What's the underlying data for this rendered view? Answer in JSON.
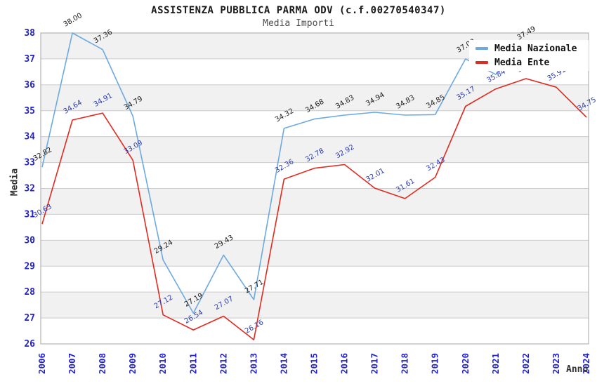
{
  "title": "ASSISTENZA PUBBLICA PARMA ODV (c.f.00270540347)",
  "subtitle": "Media Importi",
  "axes": {
    "y_label": "Media",
    "x_label": "Anno",
    "y_ticks": [
      "38",
      "37",
      "36",
      "35",
      "34",
      "33",
      "32",
      "31",
      "30",
      "29",
      "28",
      "27",
      "26"
    ],
    "x_ticks": [
      "2006",
      "2007",
      "2008",
      "2009",
      "2010",
      "2011",
      "2012",
      "2013",
      "2014",
      "2015",
      "2016",
      "2017",
      "2018",
      "2019",
      "2020",
      "2021",
      "2022",
      "2023",
      "2024"
    ]
  },
  "legend": {
    "items": [
      {
        "label": "Media Nazionale",
        "color": "#6ca9e0"
      },
      {
        "label": "Media Ente",
        "color": "#e02b20"
      }
    ]
  },
  "colors": {
    "axis_tick_text": "#2121cf",
    "gridline": "#cbcbcb",
    "plot_border": "#a6a6a6",
    "band_gray": "#f1f1f1",
    "band_white": "#ffffff",
    "label_nazionale": "#1c1c1c",
    "label_ente": "#2e3db3"
  },
  "chart_data": {
    "type": "line",
    "title": "ASSISTENZA PUBBLICA PARMA ODV (c.f.00270540347)",
    "subtitle": "Media Importi",
    "xlabel": "Anno",
    "ylabel": "Media",
    "ylim": [
      26,
      38
    ],
    "grid": "horizontal",
    "legend_position": "top-right",
    "categories": [
      "2006",
      "2007",
      "2008",
      "2009",
      "2010",
      "2011",
      "2012",
      "2013",
      "2014",
      "2015",
      "2016",
      "2017",
      "2018",
      "2019",
      "2020",
      "2021",
      "2022",
      "2023",
      "2024"
    ],
    "series": [
      {
        "name": "Media Nazionale",
        "color": "#6ca9e0",
        "label_color": "#1c1c1c",
        "values": [
          32.82,
          38.0,
          37.36,
          34.79,
          29.24,
          27.19,
          29.43,
          27.71,
          34.32,
          34.68,
          34.83,
          34.94,
          34.83,
          34.85,
          37.0,
          36.4,
          37.49,
          null,
          null
        ],
        "point_labels": [
          "32.82",
          "38.00",
          "37.36",
          "34.79",
          "29.24",
          "27.19",
          "29.43",
          "27.71",
          "34.32",
          "34.68",
          "34.83",
          "34.94",
          "34.83",
          "34.85",
          "37.00",
          "",
          "37.49",
          "",
          ""
        ]
      },
      {
        "name": "Media Ente",
        "color": "#e02b20",
        "label_color": "#2e3db3",
        "values": [
          30.63,
          34.64,
          34.91,
          33.09,
          27.12,
          26.54,
          27.07,
          26.16,
          32.36,
          32.78,
          32.92,
          32.01,
          31.61,
          32.43,
          35.17,
          35.84,
          36.24,
          35.91,
          34.75
        ],
        "point_labels": [
          "30.63",
          "34.64",
          "34.91",
          "33.09",
          "27.12",
          "26.54",
          "27.07",
          "26.16",
          "32.36",
          "32.78",
          "32.92",
          "32.01",
          "31.61",
          "32.43",
          "35.17",
          "35.84",
          "36.24",
          "35.91",
          "34.75"
        ]
      }
    ]
  }
}
